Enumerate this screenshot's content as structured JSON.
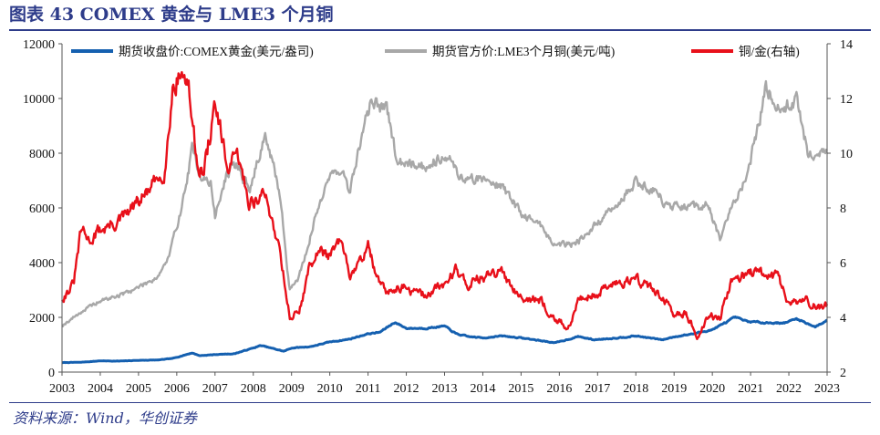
{
  "page": {
    "title": "图表 43  COMEX 黄金与 LME3 个月铜",
    "source": "资料来源：Wind，华创证券"
  },
  "colors": {
    "gold": "#1560b0",
    "copper": "#a8a8a8",
    "ratio": "#e8101a",
    "header": "#2e3c8a"
  },
  "chart_data": {
    "type": "line",
    "title": "",
    "xlabel": "",
    "ylabel": "",
    "x_ticks": [
      "2003",
      "2004",
      "2005",
      "2006",
      "2007",
      "2008",
      "2009",
      "2010",
      "2011",
      "2012",
      "2013",
      "2014",
      "2015",
      "2016",
      "2017",
      "2018",
      "2019",
      "2020",
      "2021",
      "2022",
      "2023"
    ],
    "xlim": [
      2003,
      2023
    ],
    "ylim_left": [
      0,
      12000
    ],
    "y_ticks_left": [
      "0",
      "2000",
      "4000",
      "6000",
      "8000",
      "10000",
      "12000"
    ],
    "ylim_right": [
      2,
      14
    ],
    "y_ticks_right": [
      "2",
      "4",
      "6",
      "8",
      "10",
      "12",
      "14"
    ],
    "grid": false,
    "legend_position": "top",
    "series": [
      {
        "name": "期货收盘价:COMEX黄金(美元/盎司)",
        "axis": "left",
        "color": "#1560b0",
        "x": [
          2003.0,
          2003.5,
          2004.0,
          2004.5,
          2005.0,
          2005.5,
          2005.9,
          2006.4,
          2006.6,
          2007.0,
          2007.5,
          2008.0,
          2008.2,
          2008.8,
          2009.0,
          2009.5,
          2010.0,
          2010.5,
          2011.0,
          2011.3,
          2011.7,
          2012.0,
          2012.5,
          2013.0,
          2013.3,
          2013.6,
          2014.0,
          2014.5,
          2015.0,
          2015.9,
          2016.5,
          2016.9,
          2017.5,
          2018.0,
          2018.7,
          2019.0,
          2019.5,
          2020.0,
          2020.6,
          2020.9,
          2021.5,
          2021.9,
          2022.2,
          2022.7,
          2023.0
        ],
        "y": [
          345,
          360,
          410,
          400,
          430,
          440,
          500,
          700,
          600,
          640,
          670,
          880,
          970,
          760,
          880,
          930,
          1100,
          1200,
          1400,
          1450,
          1820,
          1600,
          1600,
          1680,
          1400,
          1300,
          1250,
          1320,
          1250,
          1070,
          1300,
          1180,
          1250,
          1320,
          1180,
          1290,
          1400,
          1550,
          2000,
          1850,
          1800,
          1800,
          1950,
          1650,
          1900
        ]
      },
      {
        "name": "期货官方价:LME3个月铜(美元/吨)",
        "axis": "left",
        "color": "#a8a8a8",
        "x": [
          2003.0,
          2003.5,
          2004.0,
          2004.5,
          2005.0,
          2005.5,
          2005.8,
          2006.2,
          2006.4,
          2006.6,
          2006.9,
          2007.0,
          2007.3,
          2007.6,
          2007.9,
          2008.3,
          2008.7,
          2008.95,
          2009.2,
          2009.5,
          2009.9,
          2010.3,
          2010.5,
          2010.9,
          2011.1,
          2011.5,
          2011.8,
          2012.0,
          2012.5,
          2013.0,
          2013.5,
          2014.0,
          2014.5,
          2015.0,
          2015.5,
          2015.9,
          2016.5,
          2016.9,
          2017.5,
          2018.0,
          2018.5,
          2018.9,
          2019.5,
          2019.9,
          2020.2,
          2020.5,
          2020.9,
          2021.2,
          2021.4,
          2021.8,
          2022.0,
          2022.2,
          2022.5,
          2022.8,
          2023.0
        ],
        "y": [
          1700,
          2200,
          2600,
          2800,
          3100,
          3500,
          4200,
          6500,
          8100,
          7300,
          6800,
          5700,
          7200,
          7600,
          6600,
          8700,
          6500,
          3000,
          3500,
          5000,
          7000,
          7500,
          6500,
          9000,
          10000,
          9500,
          7500,
          7800,
          7500,
          8000,
          7000,
          7100,
          6800,
          5800,
          5400,
          4600,
          4800,
          5300,
          6100,
          7000,
          6600,
          6000,
          6000,
          6100,
          4800,
          6000,
          7200,
          9000,
          10500,
          9500,
          9800,
          10000,
          8000,
          7800,
          8300
        ]
      },
      {
        "name": "铜/金(右轴)",
        "axis": "right",
        "color": "#e8101a",
        "x": [
          2003.0,
          2003.3,
          2003.5,
          2003.7,
          2004.0,
          2004.5,
          2005.0,
          2005.5,
          2005.7,
          2005.9,
          2006.1,
          2006.3,
          2006.5,
          2006.7,
          2007.0,
          2007.3,
          2007.6,
          2007.9,
          2008.3,
          2008.5,
          2008.7,
          2008.95,
          2009.2,
          2009.5,
          2009.8,
          2010.0,
          2010.3,
          2010.5,
          2010.8,
          2011.0,
          2011.2,
          2011.5,
          2011.8,
          2012.0,
          2012.5,
          2013.0,
          2013.3,
          2013.6,
          2014.0,
          2014.5,
          2015.0,
          2015.5,
          2016.0,
          2016.3,
          2016.5,
          2016.9,
          2017.5,
          2018.0,
          2018.5,
          2018.8,
          2019.0,
          2019.3,
          2019.6,
          2019.9,
          2020.2,
          2020.5,
          2020.7,
          2021.0,
          2021.3,
          2021.7,
          2022.0,
          2022.3,
          2022.5,
          2022.8,
          2023.0
        ],
        "y": [
          4.7,
          5.2,
          7.2,
          6.8,
          7.2,
          7.5,
          8.2,
          9.0,
          9.5,
          12.5,
          13.0,
          12.5,
          10.0,
          9.2,
          11.8,
          9.5,
          9.8,
          8.2,
          8.5,
          7.5,
          6.5,
          4.0,
          4.2,
          6.0,
          6.5,
          6.2,
          6.8,
          5.5,
          6.0,
          6.8,
          5.5,
          4.8,
          5.2,
          5.0,
          4.8,
          5.2,
          5.8,
          5.2,
          5.5,
          5.6,
          4.8,
          4.6,
          3.8,
          3.6,
          4.8,
          4.8,
          5.3,
          5.4,
          5.0,
          4.5,
          4.0,
          4.2,
          3.3,
          4.0,
          4.0,
          5.4,
          5.5,
          5.6,
          5.6,
          5.5,
          4.5,
          4.6,
          4.6,
          4.3,
          4.4
        ]
      }
    ]
  }
}
